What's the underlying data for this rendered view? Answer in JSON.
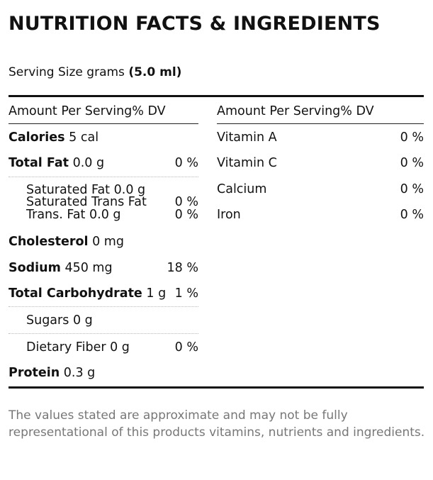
{
  "title": "NUTRITION FACTS & INGREDIENTS",
  "serving": {
    "label": "Serving Size grams",
    "value": "(5.0 ml)"
  },
  "left": {
    "header": "Amount Per Serving% DV",
    "rows": [
      {
        "name": "Calories",
        "amount": "5 cal",
        "dv": ""
      },
      {
        "name": "Total Fat",
        "amount": "0.0 g",
        "dv": "0 %"
      },
      {
        "name": "Saturated Fat",
        "amount": "0.0 g",
        "dv": ""
      },
      {
        "name": "Saturated Trans Fat",
        "amount": "",
        "dv": "0 %"
      },
      {
        "name": "Trans. Fat",
        "amount": "0.0 g",
        "dv": "0 %"
      },
      {
        "name": "Cholesterol",
        "amount": "0 mg",
        "dv": ""
      },
      {
        "name": "Sodium",
        "amount": "450 mg",
        "dv": "18 %"
      },
      {
        "name": "Total Carbohydrate",
        "amount": "1 g",
        "dv": "1 %"
      },
      {
        "name": "Sugars",
        "amount": "0 g",
        "dv": ""
      },
      {
        "name": "Dietary Fiber",
        "amount": "0 g",
        "dv": "0 %"
      },
      {
        "name": "Protein",
        "amount": "0.3 g",
        "dv": ""
      }
    ]
  },
  "right": {
    "header": "Amount Per Serving% DV",
    "rows": [
      {
        "name": "Vitamin A",
        "dv": "0 %"
      },
      {
        "name": "Vitamin C",
        "dv": "0 %"
      },
      {
        "name": "Calcium",
        "dv": "0 %"
      },
      {
        "name": "Iron",
        "dv": "0 %"
      }
    ]
  },
  "footnote": "The values stated are approximate and may not be fully representational of this products vitamins, nutrients and ingredients."
}
